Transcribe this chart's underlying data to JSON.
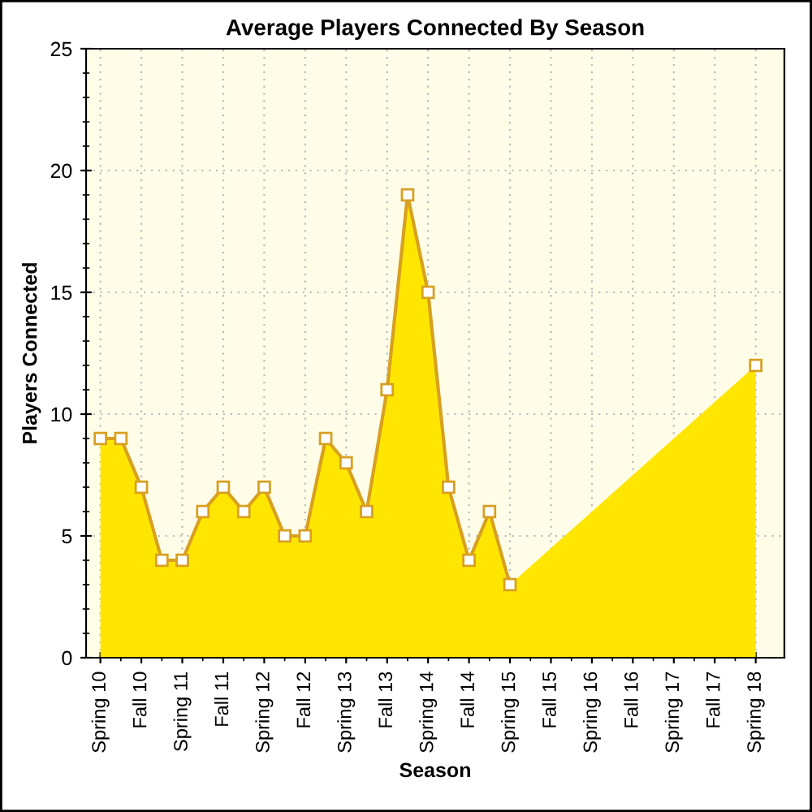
{
  "chart_data": {
    "type": "area",
    "title": "Average Players Connected By Season",
    "xlabel": "Season",
    "ylabel": "Players Connected",
    "categories": [
      "Spring 10",
      null,
      "Fall 10",
      null,
      "Spring 11",
      null,
      "Fall 11",
      null,
      "Spring 12",
      null,
      "Fall 12",
      null,
      "Spring 13",
      null,
      "Fall 13",
      null,
      "Spring 14",
      null,
      "Fall 14",
      null,
      "Spring 15",
      null,
      "Fall 15",
      null,
      "Spring 16",
      null,
      "Fall 16",
      null,
      "Spring 17",
      null,
      "Fall 17",
      null,
      "Spring 18"
    ],
    "series": [
      {
        "color": "#ffe600",
        "values": [
          9,
          9,
          7,
          4,
          4,
          6,
          7,
          6,
          7,
          5,
          5,
          9,
          8,
          6,
          11,
          19,
          15,
          7,
          4,
          6,
          3,
          null,
          null,
          null,
          null,
          null,
          null,
          null,
          null,
          null,
          null,
          null,
          12
        ]
      }
    ],
    "ylim": [
      0,
      25
    ],
    "yticks": [
      0,
      5,
      10,
      15,
      20,
      25
    ],
    "grid": true,
    "marker": "square",
    "line_style": "solid"
  }
}
